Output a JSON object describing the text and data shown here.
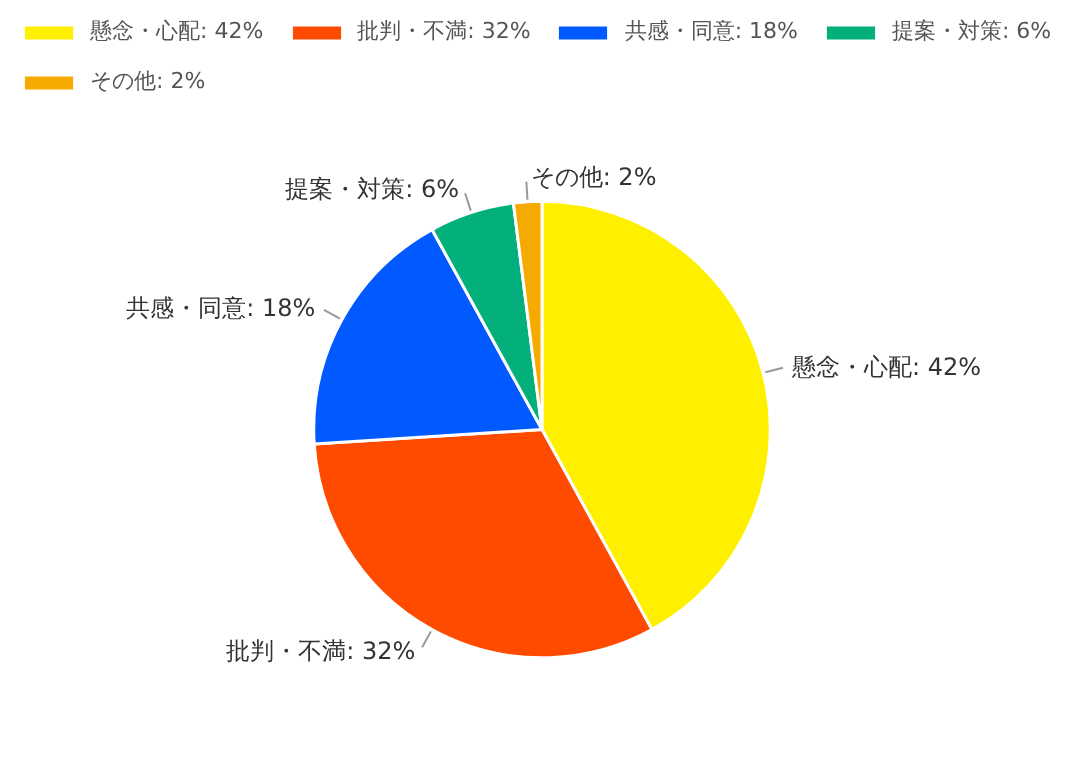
{
  "chart_data": {
    "type": "pie",
    "categories": [
      "懸念・心配",
      "批判・不満",
      "共感・同意",
      "提案・対策",
      "その他"
    ],
    "values": [
      42,
      32,
      18,
      6,
      2
    ],
    "value_labels": [
      "42%",
      "32%",
      "18%",
      "6%",
      "2%"
    ],
    "colors": [
      "#fff000",
      "#ff4b00",
      "#005aff",
      "#03af7a",
      "#f6aa00"
    ],
    "legend": "top left"
  }
}
